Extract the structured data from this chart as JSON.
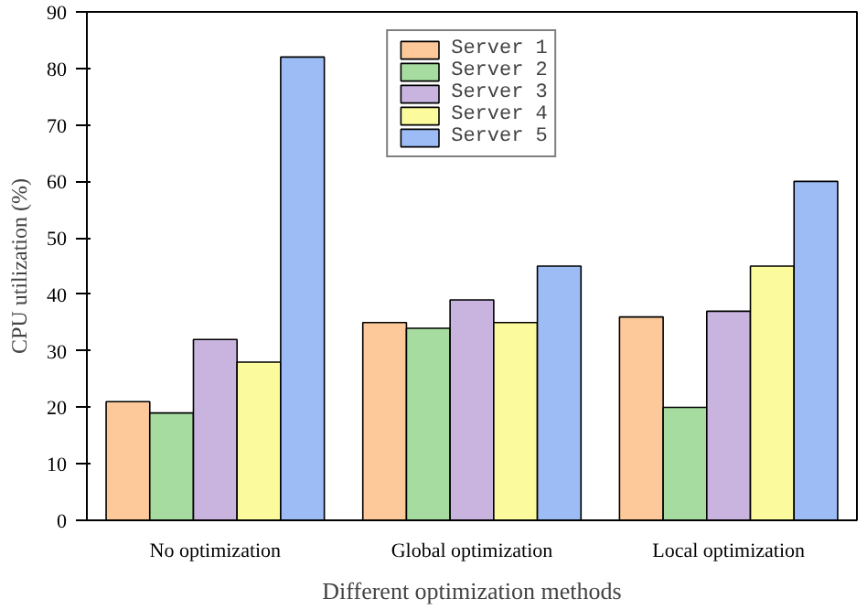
{
  "chart_data": {
    "type": "bar",
    "xlabel": "Different optimization methods",
    "ylabel": "CPU utilization (%)",
    "categories": [
      "No optimization",
      "Global optimization",
      "Local optimization"
    ],
    "series": [
      {
        "name": "Server 1",
        "color": "#fdc99b",
        "values": [
          21,
          35,
          36
        ]
      },
      {
        "name": "Server 2",
        "color": "#a6dca0",
        "values": [
          19,
          34,
          20
        ]
      },
      {
        "name": "Server 3",
        "color": "#c9b4df",
        "values": [
          32,
          39,
          37
        ]
      },
      {
        "name": "Server 4",
        "color": "#fbfb9e",
        "values": [
          28,
          35,
          45
        ]
      },
      {
        "name": "Server 5",
        "color": "#9dbcf6",
        "values": [
          82,
          45,
          60
        ]
      }
    ],
    "ylim": [
      0,
      90
    ],
    "yticks": [
      0,
      10,
      20,
      30,
      40,
      50,
      60,
      70,
      80,
      90
    ],
    "grid": false,
    "legend": "top"
  }
}
